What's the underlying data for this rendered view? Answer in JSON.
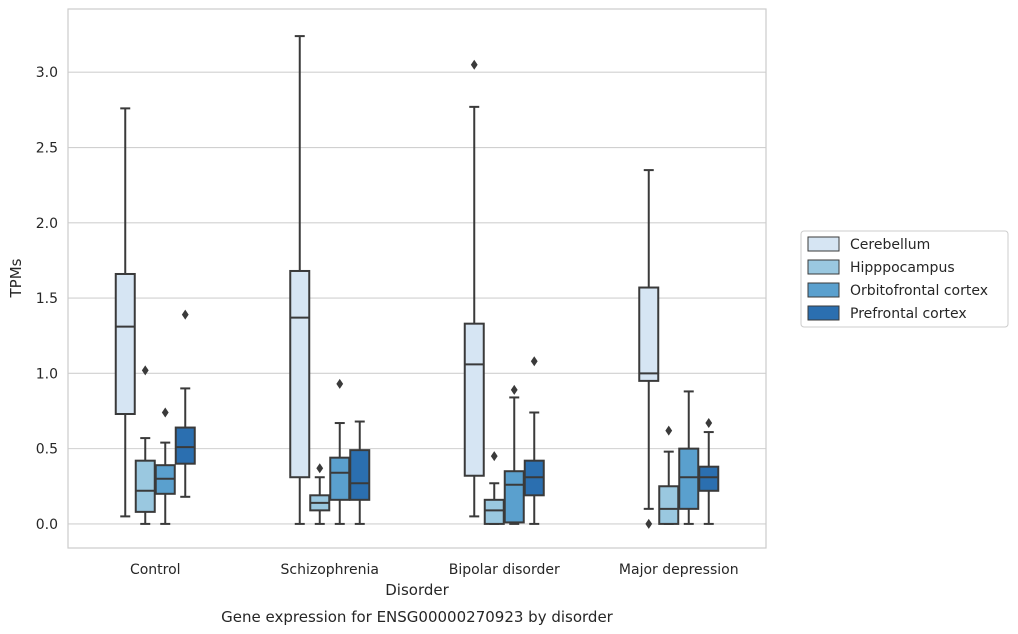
{
  "chart_data": {
    "type": "box",
    "caption": "Gene expression for ENSG00000270923 by disorder",
    "xlabel": "Disorder",
    "ylabel": "TPMs",
    "ylim": [
      -0.16,
      3.42
    ],
    "yticks": [
      "0.0",
      "0.5",
      "1.0",
      "1.5",
      "2.0",
      "2.5",
      "3.0"
    ],
    "grid": "horizontal",
    "legend_position": "right",
    "categories": [
      "Control",
      "Schizophrenia",
      "Bipolar disorder",
      "Major depression"
    ],
    "series": [
      {
        "name": "Cerebellum",
        "color": "#d6e5f3",
        "boxes": [
          {
            "whisker_low": 0.05,
            "q1": 0.73,
            "median": 1.31,
            "q3": 1.66,
            "whisker_high": 2.76,
            "outliers": []
          },
          {
            "whisker_low": 0.0,
            "q1": 0.31,
            "median": 1.37,
            "q3": 1.68,
            "whisker_high": 3.24,
            "outliers": []
          },
          {
            "whisker_low": 0.05,
            "q1": 0.32,
            "median": 1.06,
            "q3": 1.33,
            "whisker_high": 2.77,
            "outliers": [
              3.05
            ]
          },
          {
            "whisker_low": 0.1,
            "q1": 0.95,
            "median": 1.0,
            "q3": 1.57,
            "whisker_high": 2.35,
            "outliers": [
              0.0
            ]
          }
        ]
      },
      {
        "name": "Hipppocampus",
        "color": "#9ac8e0",
        "boxes": [
          {
            "whisker_low": 0.0,
            "q1": 0.08,
            "median": 0.22,
            "q3": 0.42,
            "whisker_high": 0.57,
            "outliers": [
              1.02
            ]
          },
          {
            "whisker_low": 0.0,
            "q1": 0.09,
            "median": 0.14,
            "q3": 0.19,
            "whisker_high": 0.31,
            "outliers": [
              0.37
            ]
          },
          {
            "whisker_low": 0.0,
            "q1": 0.0,
            "median": 0.09,
            "q3": 0.16,
            "whisker_high": 0.27,
            "outliers": [
              0.45
            ]
          },
          {
            "whisker_low": 0.0,
            "q1": 0.0,
            "median": 0.1,
            "q3": 0.25,
            "whisker_high": 0.48,
            "outliers": [
              0.62
            ]
          }
        ]
      },
      {
        "name": "Orbitofrontal cortex",
        "color": "#5aa0ce",
        "boxes": [
          {
            "whisker_low": 0.0,
            "q1": 0.2,
            "median": 0.3,
            "q3": 0.39,
            "whisker_high": 0.54,
            "outliers": [
              0.74
            ]
          },
          {
            "whisker_low": 0.0,
            "q1": 0.16,
            "median": 0.34,
            "q3": 0.44,
            "whisker_high": 0.67,
            "outliers": [
              0.93
            ]
          },
          {
            "whisker_low": 0.0,
            "q1": 0.01,
            "median": 0.26,
            "q3": 0.35,
            "whisker_high": 0.84,
            "outliers": [
              0.89
            ]
          },
          {
            "whisker_low": 0.0,
            "q1": 0.1,
            "median": 0.31,
            "q3": 0.5,
            "whisker_high": 0.88,
            "outliers": []
          }
        ]
      },
      {
        "name": "Prefrontal cortex",
        "color": "#2b6fb0",
        "boxes": [
          {
            "whisker_low": 0.18,
            "q1": 0.4,
            "median": 0.51,
            "q3": 0.64,
            "whisker_high": 0.9,
            "outliers": [
              1.39
            ]
          },
          {
            "whisker_low": 0.0,
            "q1": 0.16,
            "median": 0.27,
            "q3": 0.49,
            "whisker_high": 0.68,
            "outliers": []
          },
          {
            "whisker_low": 0.0,
            "q1": 0.19,
            "median": 0.31,
            "q3": 0.42,
            "whisker_high": 0.74,
            "outliers": [
              1.08
            ]
          },
          {
            "whisker_low": 0.0,
            "q1": 0.22,
            "median": 0.31,
            "q3": 0.38,
            "whisker_high": 0.61,
            "outliers": [
              0.67
            ]
          }
        ]
      }
    ]
  }
}
